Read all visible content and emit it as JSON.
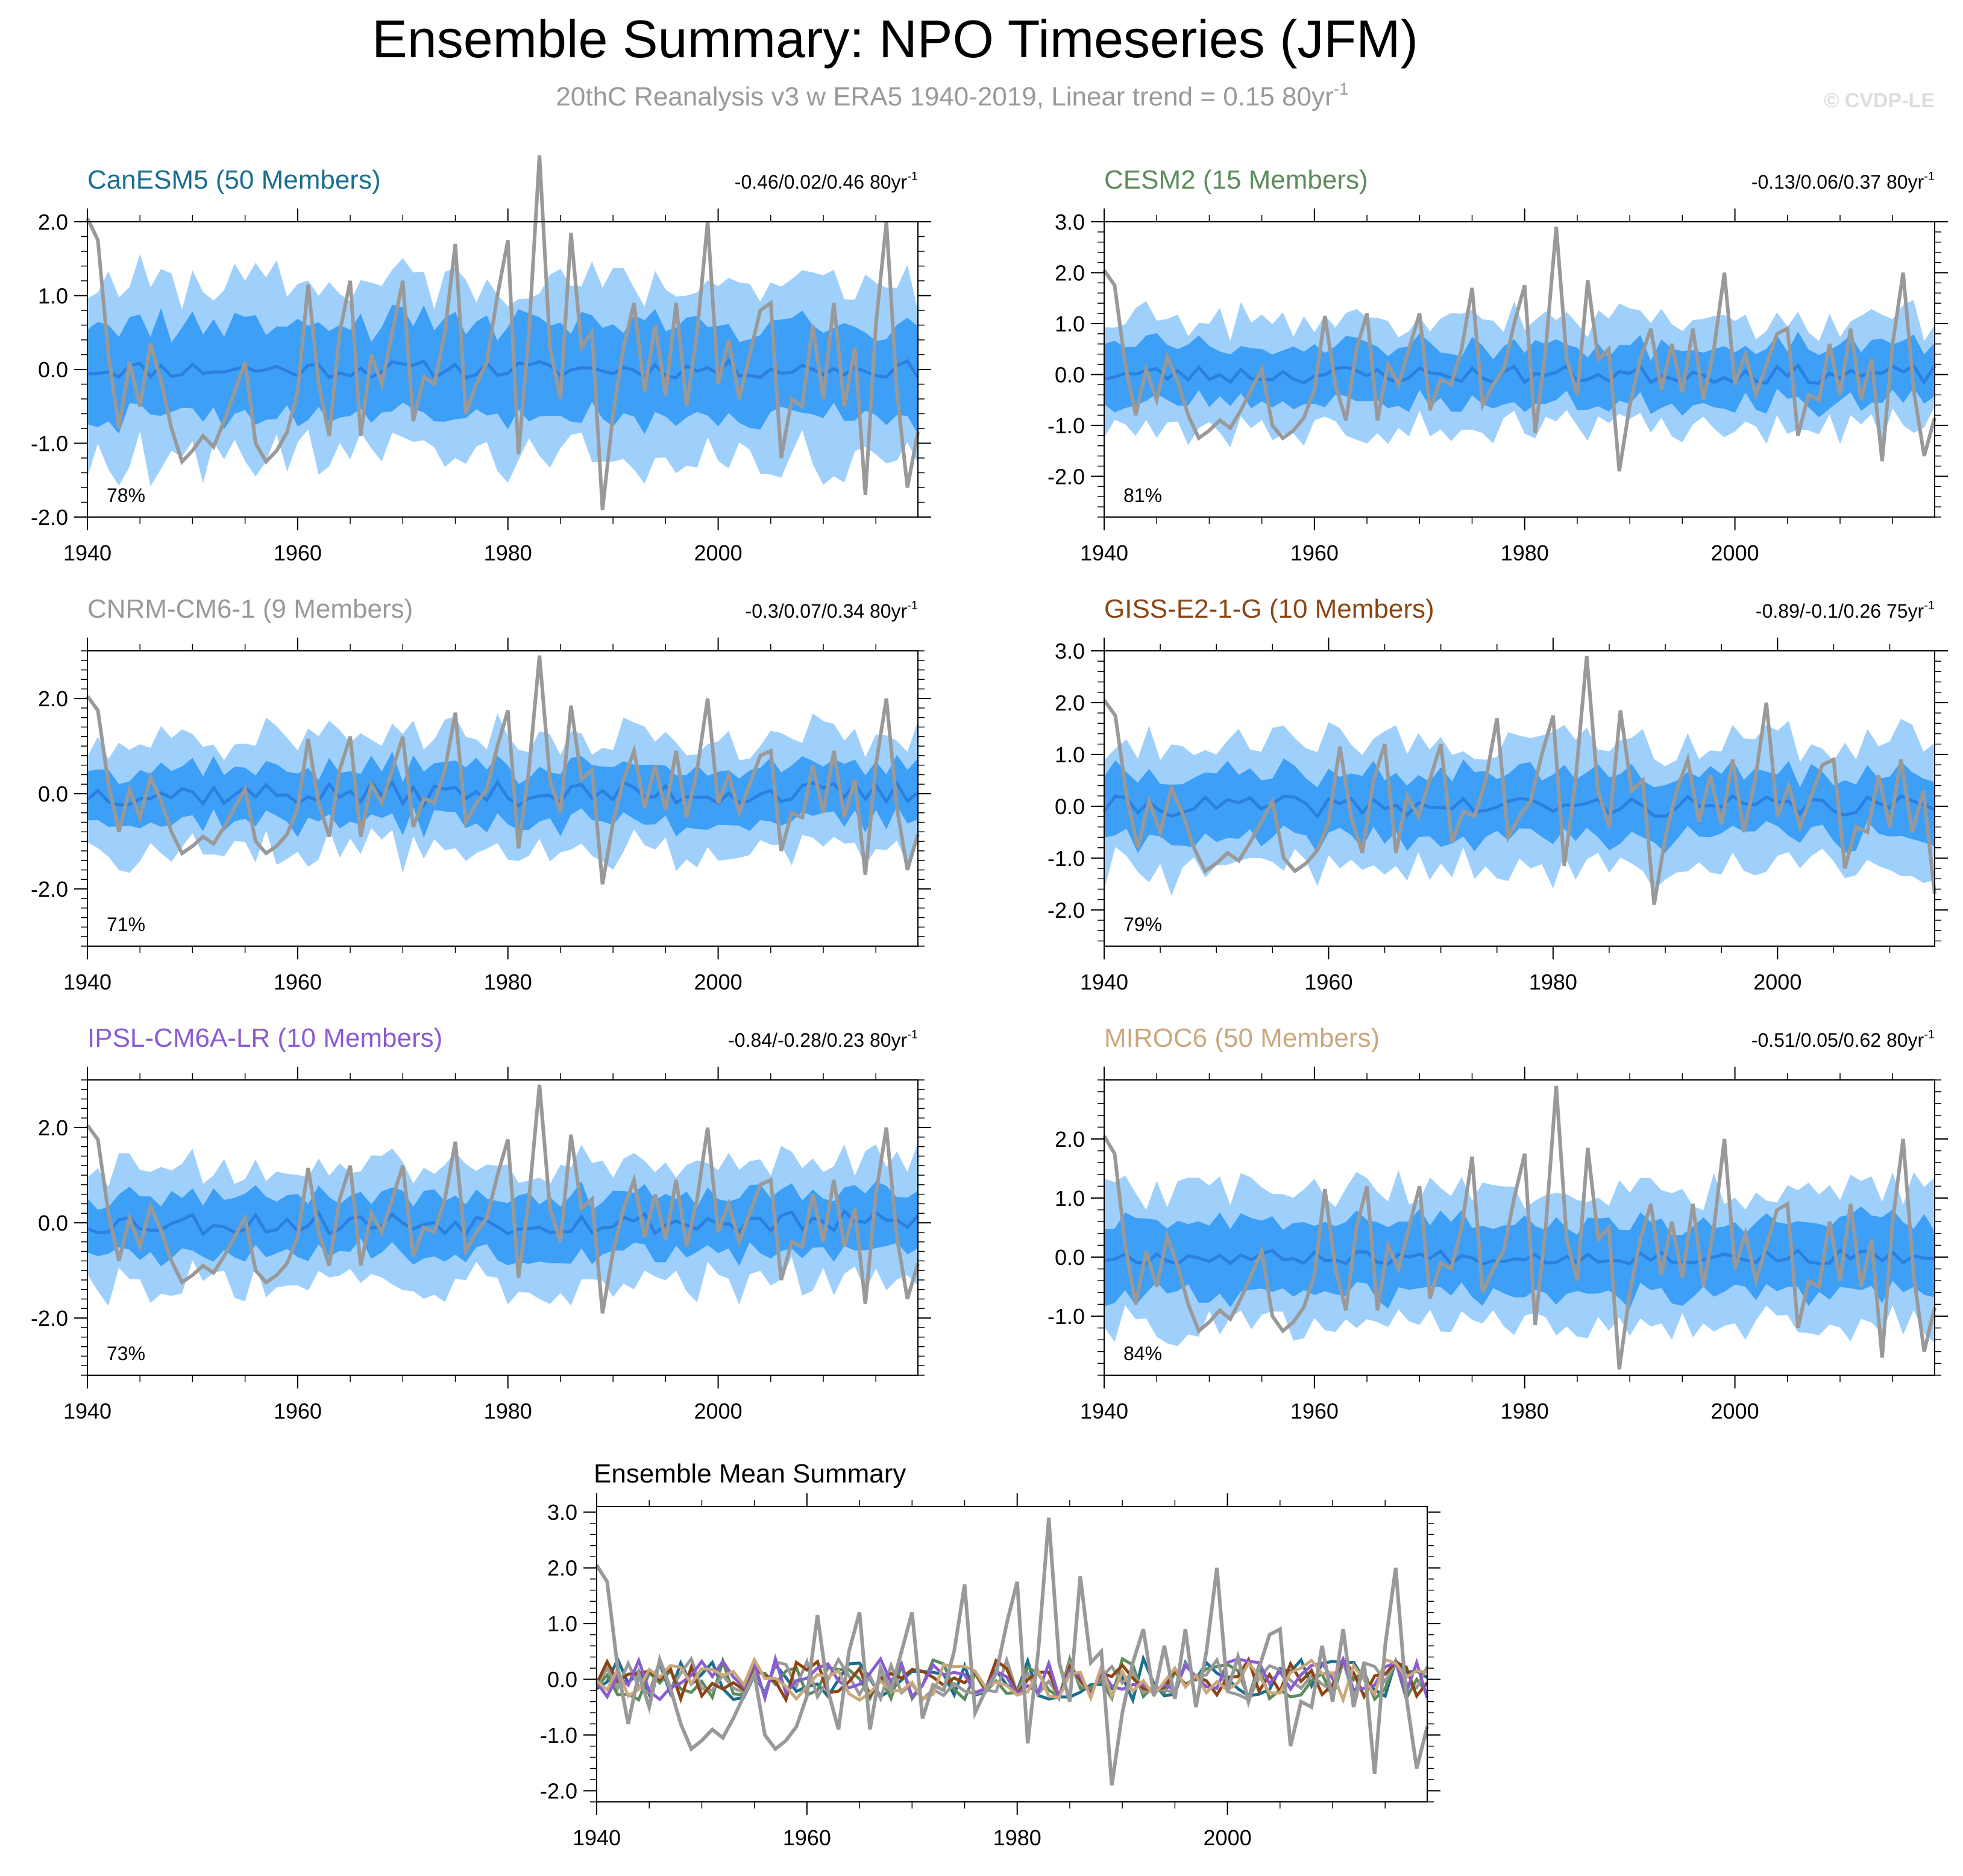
{
  "header": {
    "title": "Ensemble Summary: NPO Timeseries (JFM)",
    "subtitle": "20thC Reanalysis v3 w ERA5 1940-2019, Linear trend = 0.15 80yr",
    "subtitle_sup": "-1",
    "copyright": "© CVDP-LE"
  },
  "colors": {
    "obs_line": "#999999",
    "mean_line": "#2a7fe0",
    "band_outer": "#9fd0fb",
    "band_inner": "#3d9ff5",
    "text": "#000000",
    "subtitle": "#999999",
    "copyright": "#dddddd"
  },
  "chart_data": [
    {
      "type": "area",
      "title": "CanESM5 (50 Members)",
      "title_color": "#1a6e8e",
      "trend_label": "-0.46/0.02/0.46 80yr",
      "trend_sup": "-1",
      "pct_label": "78%",
      "xlim": [
        1940,
        2019
      ],
      "ylim": [
        -2.0,
        2.0
      ],
      "yticks": [
        -2.0,
        -1.0,
        0.0,
        1.0,
        2.0
      ],
      "ytick_labels": [
        "-2.0",
        "-1.0",
        "0.0",
        "1.0",
        "2.0"
      ],
      "xticks": [
        1940,
        1960,
        1980,
        2000
      ],
      "xtick_labels": [
        "1940",
        "1960",
        "1980",
        "2000"
      ],
      "seed": 11,
      "outer": 1.15,
      "inner": 0.6,
      "mean_amp": 0.12
    },
    {
      "type": "area",
      "title": "CESM2 (15 Members)",
      "title_color": "#5b8c5a",
      "trend_label": "-0.13/0.06/0.37 80yr",
      "trend_sup": "-1",
      "pct_label": "81%",
      "xlim": [
        1940,
        2019
      ],
      "ylim": [
        -2.8,
        3.0
      ],
      "yticks": [
        -2.0,
        -1.0,
        0.0,
        1.0,
        2.0,
        3.0
      ],
      "ytick_labels": [
        "-2.0",
        "-1.0",
        "0.0",
        "1.0",
        "2.0",
        "3.0"
      ],
      "xticks": [
        1940,
        1960,
        1980,
        2000
      ],
      "xtick_labels": [
        "1940",
        "1960",
        "1980",
        "2000"
      ],
      "seed": 23,
      "outer": 1.05,
      "inner": 0.55,
      "mean_amp": 0.18
    },
    {
      "type": "area",
      "title": "CNRM-CM6-1 (9 Members)",
      "title_color": "#999999",
      "trend_label": "-0.3/0.07/0.34 80yr",
      "trend_sup": "-1",
      "pct_label": "71%",
      "xlim": [
        1940,
        2019
      ],
      "ylim": [
        -3.2,
        3.0
      ],
      "yticks": [
        -2.0,
        0.0,
        2.0
      ],
      "ytick_labels": [
        "-2.0",
        "0.0",
        "2.0"
      ],
      "xticks": [
        1940,
        1960,
        1980,
        2000
      ],
      "xtick_labels": [
        "1940",
        "1960",
        "1980",
        "2000"
      ],
      "seed": 37,
      "outer": 1.15,
      "inner": 0.55,
      "mean_amp": 0.25
    },
    {
      "type": "area",
      "title": "GISS-E2-1-G (10 Members)",
      "title_color": "#8b4513",
      "trend_label": "-0.89/-0.1/0.26 75yr",
      "trend_sup": "-1",
      "pct_label": "79%",
      "xlim": [
        1940,
        2014
      ],
      "ylim": [
        -2.7,
        3.0
      ],
      "yticks": [
        -2.0,
        -1.0,
        0.0,
        1.0,
        2.0,
        3.0
      ],
      "ytick_labels": [
        "-2.0",
        "-1.0",
        "0.0",
        "1.0",
        "2.0",
        "3.0"
      ],
      "xticks": [
        1940,
        1960,
        1980,
        2000
      ],
      "xtick_labels": [
        "1940",
        "1960",
        "1980",
        "2000"
      ],
      "seed": 41,
      "outer": 1.2,
      "inner": 0.6,
      "mean_amp": 0.2
    },
    {
      "type": "area",
      "title": "IPSL-CM6A-LR (10 Members)",
      "title_color": "#8a5cd1",
      "trend_label": "-0.84/-0.28/0.23 80yr",
      "trend_sup": "-1",
      "pct_label": "73%",
      "xlim": [
        1940,
        2019
      ],
      "ylim": [
        -3.2,
        3.0
      ],
      "yticks": [
        -2.0,
        0.0,
        2.0
      ],
      "ytick_labels": [
        "-2.0",
        "0.0",
        "2.0"
      ],
      "xticks": [
        1940,
        1960,
        1980,
        2000
      ],
      "xtick_labels": [
        "1940",
        "1960",
        "1980",
        "2000"
      ],
      "seed": 53,
      "outer": 1.2,
      "inner": 0.6,
      "mean_amp": 0.25
    },
    {
      "type": "area",
      "title": "MIROC6 (50 Members)",
      "title_color": "#c9a87c",
      "trend_label": "-0.51/0.05/0.62 80yr",
      "trend_sup": "-1",
      "pct_label": "84%",
      "xlim": [
        1940,
        2019
      ],
      "ylim": [
        -2.0,
        3.0
      ],
      "yticks": [
        -1.0,
        0.0,
        1.0,
        2.0
      ],
      "ytick_labels": [
        "-1.0",
        "0.0",
        "1.0",
        "2.0"
      ],
      "xticks": [
        1940,
        1960,
        1980,
        2000
      ],
      "xtick_labels": [
        "1940",
        "1960",
        "1980",
        "2000"
      ],
      "seed": 67,
      "outer": 1.1,
      "inner": 0.6,
      "mean_amp": 0.12
    },
    {
      "type": "line",
      "title": "Ensemble Mean Summary",
      "title_color": "#000000",
      "xlim": [
        1940,
        2019
      ],
      "ylim": [
        -2.2,
        3.1
      ],
      "yticks": [
        -2.0,
        -1.0,
        0.0,
        1.0,
        2.0,
        3.0
      ],
      "ytick_labels": [
        "-2.0",
        "-1.0",
        "0.0",
        "1.0",
        "2.0",
        "3.0"
      ],
      "xticks": [
        1940,
        1960,
        1980,
        2000
      ],
      "xtick_labels": [
        "1940",
        "1960",
        "1980",
        "2000"
      ],
      "series_colors": [
        "#1a6e8e",
        "#5b8c5a",
        "#999999",
        "#8b4513",
        "#8a5cd1",
        "#c9a87c"
      ]
    }
  ],
  "observed": {
    "x_start": 1940,
    "values": [
      2.05,
      1.75,
      0.2,
      -0.8,
      0.1,
      -0.5,
      0.35,
      -0.15,
      -0.8,
      -1.25,
      -1.1,
      -0.9,
      -1.05,
      -0.7,
      -0.3,
      0.1,
      -1.0,
      -1.25,
      -1.1,
      -0.85,
      -0.3,
      1.15,
      -0.2,
      -0.9,
      0.5,
      1.2,
      -0.9,
      0.2,
      -0.2,
      0.5,
      1.2,
      -0.7,
      -0.1,
      -0.2,
      0.5,
      1.7,
      -0.6,
      -0.2,
      0.1,
      1.0,
      1.75,
      -1.15,
      0.5,
      2.9,
      0.3,
      -0.4,
      1.85,
      0.3,
      0.5,
      -1.9,
      -0.6,
      0.3,
      0.9,
      -0.3,
      0.6,
      -0.35,
      0.9,
      -0.5,
      0.5,
      2.0,
      -0.2,
      0.4,
      -0.4,
      0.2,
      0.8,
      0.9,
      -1.2,
      -0.4,
      -0.5,
      0.6,
      -0.4,
      0.9,
      -0.5,
      0.3,
      -1.7,
      0.6,
      2.0,
      -0.3,
      -1.6,
      -0.85
    ]
  },
  "mean_series_seeds": [
    101,
    202,
    303,
    404,
    505,
    606
  ]
}
